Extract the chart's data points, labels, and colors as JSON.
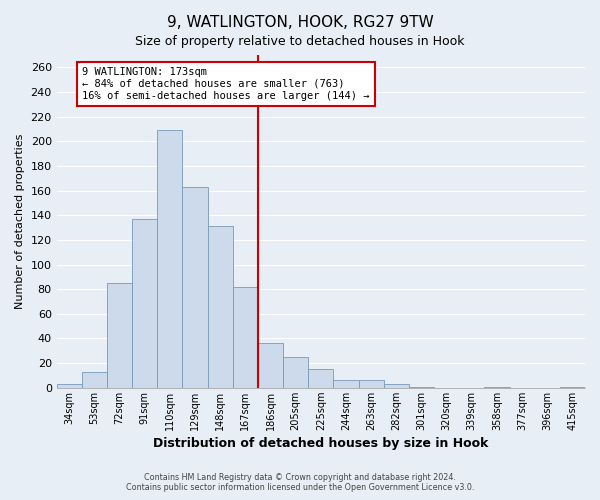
{
  "title": "9, WATLINGTON, HOOK, RG27 9TW",
  "subtitle": "Size of property relative to detached houses in Hook",
  "xlabel": "Distribution of detached houses by size in Hook",
  "ylabel": "Number of detached properties",
  "bar_color": "#ccdaeb",
  "bar_edge_color": "#7799bb",
  "categories": [
    "34sqm",
    "53sqm",
    "72sqm",
    "91sqm",
    "110sqm",
    "129sqm",
    "148sqm",
    "167sqm",
    "186sqm",
    "205sqm",
    "225sqm",
    "244sqm",
    "263sqm",
    "282sqm",
    "301sqm",
    "320sqm",
    "339sqm",
    "358sqm",
    "377sqm",
    "396sqm",
    "415sqm"
  ],
  "values": [
    3,
    13,
    85,
    137,
    209,
    163,
    131,
    82,
    36,
    25,
    15,
    6,
    6,
    3,
    1,
    0,
    0,
    1,
    0,
    0,
    1
  ],
  "vline_index": 7,
  "vline_color": "#cc0000",
  "ylim": [
    0,
    270
  ],
  "yticks": [
    0,
    20,
    40,
    60,
    80,
    100,
    120,
    140,
    160,
    180,
    200,
    220,
    240,
    260
  ],
  "annotation_title": "9 WATLINGTON: 173sqm",
  "annotation_line1": "← 84% of detached houses are smaller (763)",
  "annotation_line2": "16% of semi-detached houses are larger (144) →",
  "annotation_box_color": "#cc0000",
  "footer1": "Contains HM Land Registry data © Crown copyright and database right 2024.",
  "footer2": "Contains public sector information licensed under the Open Government Licence v3.0.",
  "bg_color": "#e8eef5",
  "plot_bg_color": "#e8eef5",
  "grid_color": "#ffffff"
}
